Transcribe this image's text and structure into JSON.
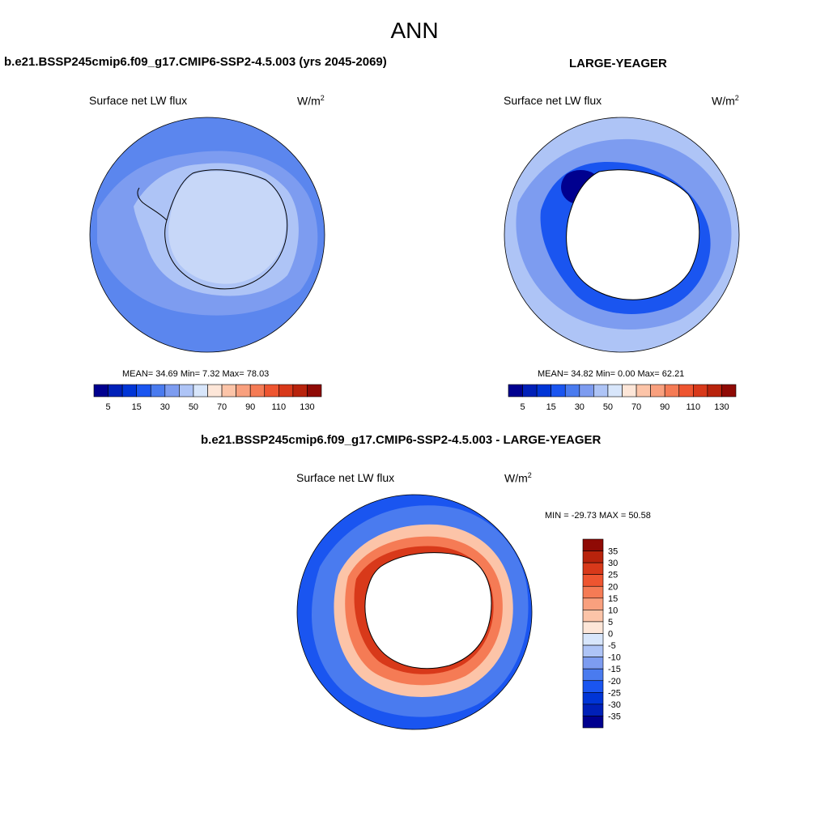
{
  "figure": {
    "season": "ANN",
    "panels": [
      {
        "title": "b.e21.BSSP245cmip6.f09_g17.CMIP6-SSP2-4.5.003 (yrs 2045-2069)",
        "variable": "Surface net LW flux",
        "units_base": "W/m",
        "units_exp": "2",
        "stats": "MEAN=  34.69  Min=   7.32  Max=  78.03"
      },
      {
        "title": "LARGE-YEAGER",
        "variable": "Surface net LW flux",
        "units_base": "W/m",
        "units_exp": "2",
        "stats": "MEAN=  34.82  Min=   0.00  Max=  62.21"
      },
      {
        "title": "b.e21.BSSP245cmip6.f09_g17.CMIP6-SSP2-4.5.003 - LARGE-YEAGER",
        "variable": "Surface net LW flux",
        "units_base": "W/m",
        "units_exp": "2",
        "stats": "MIN = -29.73 MAX =  50.58"
      }
    ],
    "colorbar_abs": {
      "colors": [
        "#00008f",
        "#0020b8",
        "#0035d6",
        "#1a55f0",
        "#4a7bef",
        "#7d9cf0",
        "#aec4f6",
        "#d8e6fb",
        "#fde6d8",
        "#fcc4a8",
        "#f9a07e",
        "#f57b55",
        "#ee5530",
        "#d8391a",
        "#b8230c",
        "#8f0a05"
      ],
      "ticks": [
        "5",
        "15",
        "30",
        "50",
        "70",
        "90",
        "110",
        "130"
      ]
    },
    "colorbar_diff": {
      "colors": [
        "#8f0a05",
        "#b8230c",
        "#d8391a",
        "#ee5530",
        "#f57b55",
        "#f9a07e",
        "#fcc4a8",
        "#fde6d8",
        "#d8e6fb",
        "#aec4f6",
        "#7d9cf0",
        "#4a7bef",
        "#1a55f0",
        "#0035d6",
        "#0020b8",
        "#00008f"
      ],
      "ticks": [
        "35",
        "30",
        "25",
        "20",
        "15",
        "10",
        "5",
        "0",
        "-5",
        "-10",
        "-15",
        "-20",
        "-25",
        "-30",
        "-35"
      ]
    },
    "map_colors": {
      "panel1_ocean": "#5b86ee",
      "panel1_band": "#7d9cf0",
      "panel1_ice": "#aec4f6",
      "panel1_land": "#c7d7f8",
      "panel2_ocean": "#aec4f6",
      "panel2_band": "#7d9cf0",
      "panel2_deep": "#1a55f0",
      "panel3_ocean": "#1a55f0",
      "panel3_ring_outer": "#fcc4a8",
      "panel3_ring_mid": "#f57b55",
      "panel3_ring_inner": "#d8391a",
      "land_masked": "#ffffff"
    }
  }
}
